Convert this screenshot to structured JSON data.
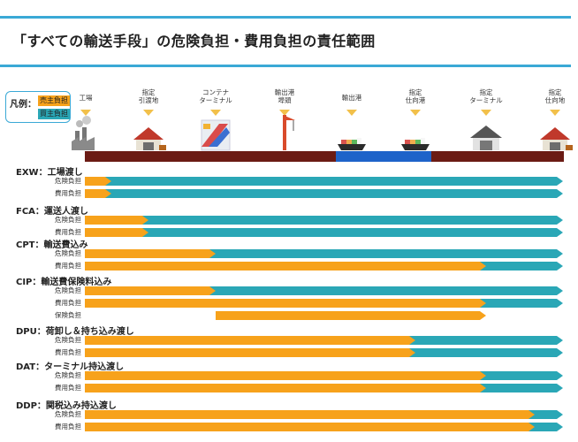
{
  "title": "「すべての輸送手段」の危険負担・費用負担の責任範囲",
  "legend": {
    "label": "凡例：",
    "seller": "売主負担",
    "buyer": "買主負担",
    "seller_color": "#f7a21b",
    "buyer_color": "#2aa7b6"
  },
  "stages": [
    {
      "label": "工場",
      "icon": "factory-icon"
    },
    {
      "label": "指定\n引渡地",
      "icon": "warehouse-icon"
    },
    {
      "label": "コンテナ\nターミナル",
      "icon": "container-terminal-icon"
    },
    {
      "label": "輸出港\n埠頭",
      "icon": "crane-icon"
    },
    {
      "label": "輸出港",
      "icon": "ship-icon"
    },
    {
      "label": "指定\n仕向港",
      "icon": "ship-icon"
    },
    {
      "label": "指定\nターミナル",
      "icon": "terminal-building-icon"
    },
    {
      "label": "指定\n仕向地",
      "icon": "warehouse-icon"
    }
  ],
  "terms": [
    {
      "title": "EXW：工場渡し",
      "rows": [
        {
          "label": "危険負担",
          "seller_until_stage": 0
        },
        {
          "label": "費用負担",
          "seller_until_stage": 0
        }
      ]
    },
    {
      "title": "FCA：運送人渡し",
      "rows": [
        {
          "label": "危険負担",
          "seller_until_stage": 1
        },
        {
          "label": "費用負担",
          "seller_until_stage": 1
        }
      ]
    },
    {
      "title": "CPT：輸送費込み",
      "rows": [
        {
          "label": "危険負担",
          "seller_until_stage": 2
        },
        {
          "label": "費用負担",
          "seller_until_stage": 6
        }
      ]
    },
    {
      "title": "CIP：輸送費保険料込み",
      "rows": [
        {
          "label": "危険負担",
          "seller_until_stage": 2
        },
        {
          "label": "費用負担",
          "seller_until_stage": 6
        },
        {
          "label": "保険負担",
          "seller_from_stage": 2,
          "seller_until_stage": 6
        }
      ]
    },
    {
      "title": "DPU：荷卸し＆持ち込み渡し",
      "rows": [
        {
          "label": "危険負担",
          "seller_until_stage": 5
        },
        {
          "label": "費用負担",
          "seller_until_stage": 5
        }
      ]
    },
    {
      "title": "DAT：ターミナル持込渡し",
      "rows": [
        {
          "label": "危険負担",
          "seller_until_stage": 6
        },
        {
          "label": "費用負担",
          "seller_until_stage": 6
        }
      ]
    },
    {
      "title": "DDP：関税込み持込渡し",
      "rows": [
        {
          "label": "危険負担",
          "seller_until_stage": 7
        },
        {
          "label": "費用負担",
          "seller_until_stage": 7
        }
      ]
    }
  ]
}
